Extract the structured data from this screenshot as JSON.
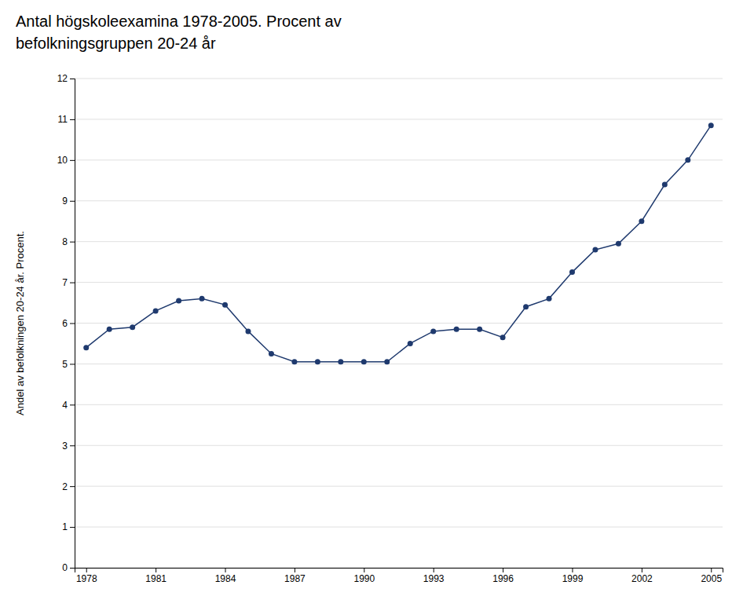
{
  "chart_data": {
    "type": "line",
    "title": "Antal högskoleexamina 1978-2005. Procent av",
    "subtitle": "befolkningsgruppen 20-24 år",
    "y_label": "Andel av befolkningen 20-24 år. Procent.",
    "x": [
      1978,
      1979,
      1980,
      1981,
      1982,
      1983,
      1984,
      1985,
      1986,
      1987,
      1988,
      1989,
      1990,
      1991,
      1992,
      1993,
      1994,
      1995,
      1996,
      1997,
      1998,
      1999,
      2000,
      2001,
      2002,
      2003,
      2004,
      2005
    ],
    "values": [
      5.4,
      5.85,
      5.9,
      6.3,
      6.55,
      6.6,
      6.45,
      5.8,
      5.25,
      5.05,
      5.05,
      5.05,
      5.05,
      5.05,
      5.5,
      5.8,
      5.85,
      5.85,
      5.65,
      6.4,
      6.6,
      7.25,
      7.8,
      7.95,
      8.5,
      9.4,
      10.0,
      10.85
    ],
    "color": "#1f3a6e",
    "marker": "circle",
    "xlim": [
      1977.5,
      2005.5
    ],
    "xticks": [
      1978,
      1981,
      1984,
      1987,
      1990,
      1993,
      1996,
      1999,
      2002,
      2005
    ],
    "ylim": [
      0,
      12
    ],
    "yticks": [
      0,
      1,
      2,
      3,
      4,
      5,
      6,
      7,
      8,
      9,
      10,
      11,
      12
    ],
    "grid": true
  }
}
